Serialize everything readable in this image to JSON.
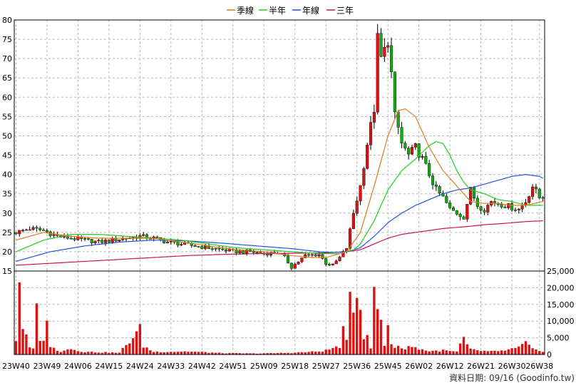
{
  "chart_data": {
    "type": "candlestick",
    "legend": [
      {
        "name": "季線",
        "color": "#e07b20"
      },
      {
        "name": "半年",
        "color": "#22cc22"
      },
      {
        "name": "年線",
        "color": "#2255dd"
      },
      {
        "name": "三年",
        "color": "#cc1166"
      }
    ],
    "price_axis": {
      "ylim": [
        15,
        80
      ],
      "ticks": [
        80,
        75,
        70,
        65,
        60,
        55,
        50,
        45,
        40,
        35,
        30,
        25,
        20,
        15
      ]
    },
    "volume_axis": {
      "ylim": [
        0,
        25000
      ],
      "ticks": [
        {
          "v": 25000,
          "label": "25,000"
        },
        {
          "v": 20000,
          "label": "20,000"
        },
        {
          "v": 15000,
          "label": "15,000"
        },
        {
          "v": 10000,
          "label": "10,000"
        },
        {
          "v": 5000,
          "label": "5,000"
        },
        {
          "v": 0,
          "label": "0"
        }
      ]
    },
    "x_ticks": [
      {
        "label": "23W40",
        "i": 0
      },
      {
        "label": "23W49",
        "i": 9
      },
      {
        "label": "24W06",
        "i": 18
      },
      {
        "label": "24W15",
        "i": 27
      },
      {
        "label": "24W24",
        "i": 36
      },
      {
        "label": "24W33",
        "i": 45
      },
      {
        "label": "24W42",
        "i": 54
      },
      {
        "label": "24W51",
        "i": 63
      },
      {
        "label": "25W09",
        "i": 72
      },
      {
        "label": "25W18",
        "i": 81
      },
      {
        "label": "25W27",
        "i": 90
      },
      {
        "label": "25W36",
        "i": 99
      },
      {
        "label": "25W45",
        "i": 108
      },
      {
        "label": "26W02",
        "i": 117
      },
      {
        "label": "26W12",
        "i": 126
      },
      {
        "label": "26W21",
        "i": 135
      },
      {
        "label": "26W30",
        "i": 144
      },
      {
        "label": "26W38",
        "i": 152
      }
    ],
    "week_count": 154,
    "footer": "資料日期: 09/16 (Goodinfo.tw)",
    "price_anchors": [
      [
        0,
        25
      ],
      [
        4,
        26
      ],
      [
        8,
        25.5
      ],
      [
        12,
        24
      ],
      [
        16,
        23.5
      ],
      [
        20,
        23
      ],
      [
        24,
        22.5
      ],
      [
        28,
        23
      ],
      [
        32,
        23.5
      ],
      [
        36,
        24
      ],
      [
        40,
        23.5
      ],
      [
        44,
        22.5
      ],
      [
        48,
        22
      ],
      [
        52,
        21.5
      ],
      [
        56,
        21
      ],
      [
        60,
        20.5
      ],
      [
        64,
        20
      ],
      [
        68,
        20
      ],
      [
        72,
        19.5
      ],
      [
        76,
        19.8
      ],
      [
        78,
        18.5
      ],
      [
        80,
        16
      ],
      [
        82,
        17.5
      ],
      [
        84,
        19
      ],
      [
        88,
        19.3
      ],
      [
        90,
        17
      ],
      [
        92,
        16.5
      ],
      [
        94,
        18.5
      ],
      [
        96,
        21
      ],
      [
        98,
        30
      ],
      [
        100,
        37
      ],
      [
        102,
        48
      ],
      [
        104,
        57
      ],
      [
        105,
        75
      ],
      [
        106,
        70
      ],
      [
        107,
        72
      ],
      [
        108,
        75
      ],
      [
        109,
        66
      ],
      [
        110,
        55
      ],
      [
        111,
        52
      ],
      [
        112,
        48
      ],
      [
        114,
        45
      ],
      [
        116,
        47
      ],
      [
        118,
        44
      ],
      [
        120,
        40
      ],
      [
        122,
        36
      ],
      [
        124,
        34
      ],
      [
        126,
        31
      ],
      [
        128,
        30
      ],
      [
        130,
        29
      ],
      [
        132,
        36
      ],
      [
        134,
        32
      ],
      [
        136,
        31
      ],
      [
        138,
        33
      ],
      [
        140,
        32.5
      ],
      [
        142,
        32
      ],
      [
        144,
        31.5
      ],
      [
        146,
        31
      ],
      [
        148,
        33
      ],
      [
        150,
        37
      ],
      [
        152,
        34
      ],
      [
        153,
        34.5
      ]
    ],
    "ma_quarter": [
      [
        0,
        23
      ],
      [
        8,
        25
      ],
      [
        16,
        24
      ],
      [
        24,
        23.5
      ],
      [
        32,
        23.5
      ],
      [
        40,
        23.5
      ],
      [
        48,
        22.5
      ],
      [
        56,
        21.5
      ],
      [
        64,
        20.5
      ],
      [
        72,
        20
      ],
      [
        80,
        19
      ],
      [
        86,
        18.5
      ],
      [
        90,
        18.5
      ],
      [
        96,
        20
      ],
      [
        100,
        25
      ],
      [
        104,
        37
      ],
      [
        108,
        50
      ],
      [
        111,
        56.5
      ],
      [
        113,
        57
      ],
      [
        116,
        55
      ],
      [
        120,
        47
      ],
      [
        124,
        41
      ],
      [
        128,
        37
      ],
      [
        132,
        33
      ],
      [
        136,
        32.5
      ],
      [
        140,
        32.5
      ],
      [
        144,
        32
      ],
      [
        148,
        32
      ],
      [
        153,
        33
      ]
    ],
    "ma_half": [
      [
        0,
        20
      ],
      [
        8,
        23
      ],
      [
        16,
        24.5
      ],
      [
        24,
        24.5
      ],
      [
        32,
        24
      ],
      [
        40,
        23.5
      ],
      [
        48,
        23
      ],
      [
        56,
        22
      ],
      [
        64,
        21
      ],
      [
        72,
        20.5
      ],
      [
        80,
        20
      ],
      [
        88,
        19.5
      ],
      [
        94,
        19.5
      ],
      [
        98,
        20.5
      ],
      [
        100,
        22
      ],
      [
        104,
        28
      ],
      [
        108,
        36
      ],
      [
        112,
        41
      ],
      [
        116,
        44
      ],
      [
        120,
        47.5
      ],
      [
        122,
        48.5
      ],
      [
        124,
        48
      ],
      [
        126,
        45
      ],
      [
        128,
        41
      ],
      [
        130,
        38
      ],
      [
        132,
        36
      ],
      [
        136,
        35
      ],
      [
        140,
        33.5
      ],
      [
        144,
        33
      ],
      [
        148,
        32
      ],
      [
        153,
        32
      ]
    ],
    "ma_year": [
      [
        0,
        17.5
      ],
      [
        10,
        20
      ],
      [
        20,
        21.5
      ],
      [
        30,
        22.5
      ],
      [
        40,
        23
      ],
      [
        50,
        22.8
      ],
      [
        60,
        22.2
      ],
      [
        70,
        21.5
      ],
      [
        80,
        20.8
      ],
      [
        88,
        20
      ],
      [
        92,
        19.8
      ],
      [
        96,
        20
      ],
      [
        100,
        21
      ],
      [
        104,
        24
      ],
      [
        108,
        27.5
      ],
      [
        112,
        30
      ],
      [
        116,
        32
      ],
      [
        120,
        33.5
      ],
      [
        124,
        35
      ],
      [
        128,
        36
      ],
      [
        132,
        36.5
      ],
      [
        136,
        37.5
      ],
      [
        140,
        38.5
      ],
      [
        144,
        39.5
      ],
      [
        148,
        40
      ],
      [
        152,
        39.5
      ],
      [
        153,
        39
      ]
    ],
    "ma_three": [
      [
        0,
        16.5
      ],
      [
        10,
        17
      ],
      [
        20,
        17.5
      ],
      [
        30,
        18
      ],
      [
        40,
        18.5
      ],
      [
        50,
        19
      ],
      [
        60,
        19.3
      ],
      [
        70,
        19.5
      ],
      [
        80,
        19.6
      ],
      [
        90,
        19.7
      ],
      [
        96,
        20
      ],
      [
        100,
        20.5
      ],
      [
        104,
        22
      ],
      [
        108,
        23.5
      ],
      [
        112,
        24.5
      ],
      [
        116,
        25
      ],
      [
        120,
        25.5
      ],
      [
        124,
        26
      ],
      [
        128,
        26.3
      ],
      [
        132,
        26.6
      ],
      [
        136,
        27
      ],
      [
        140,
        27.2
      ],
      [
        144,
        27.5
      ],
      [
        148,
        27.8
      ],
      [
        153,
        28
      ]
    ],
    "volume_anchors": [
      [
        0,
        4500
      ],
      [
        1,
        22500
      ],
      [
        2,
        8500
      ],
      [
        3,
        5000
      ],
      [
        4,
        2000
      ],
      [
        5,
        1500
      ],
      [
        6,
        14000
      ],
      [
        7,
        5000
      ],
      [
        8,
        3500
      ],
      [
        9,
        13000
      ],
      [
        10,
        2500
      ],
      [
        11,
        1800
      ],
      [
        12,
        1000
      ],
      [
        13,
        900
      ],
      [
        14,
        1500
      ],
      [
        15,
        1800
      ],
      [
        20,
        800
      ],
      [
        30,
        500
      ],
      [
        36,
        7500
      ],
      [
        37,
        2500
      ],
      [
        40,
        800
      ],
      [
        50,
        900
      ],
      [
        60,
        400
      ],
      [
        70,
        300
      ],
      [
        80,
        500
      ],
      [
        88,
        900
      ],
      [
        90,
        1200
      ],
      [
        94,
        2500
      ],
      [
        95,
        7000
      ],
      [
        96,
        3500
      ],
      [
        97,
        17800
      ],
      [
        98,
        15500
      ],
      [
        99,
        17000
      ],
      [
        100,
        17500
      ],
      [
        101,
        5000
      ],
      [
        102,
        7000
      ],
      [
        103,
        1500
      ],
      [
        104,
        22000
      ],
      [
        105,
        12000
      ],
      [
        106,
        10500
      ],
      [
        107,
        2500
      ],
      [
        108,
        9500
      ],
      [
        109,
        3500
      ],
      [
        110,
        2000
      ],
      [
        111,
        3000
      ],
      [
        112,
        1500
      ],
      [
        114,
        2500
      ],
      [
        116,
        2000
      ],
      [
        118,
        1500
      ],
      [
        120,
        1000
      ],
      [
        124,
        1200
      ],
      [
        128,
        800
      ],
      [
        130,
        5000
      ],
      [
        131,
        2500
      ],
      [
        132,
        1500
      ],
      [
        136,
        1000
      ],
      [
        140,
        900
      ],
      [
        146,
        2000
      ],
      [
        148,
        3500
      ],
      [
        150,
        1500
      ],
      [
        153,
        1000
      ]
    ]
  }
}
